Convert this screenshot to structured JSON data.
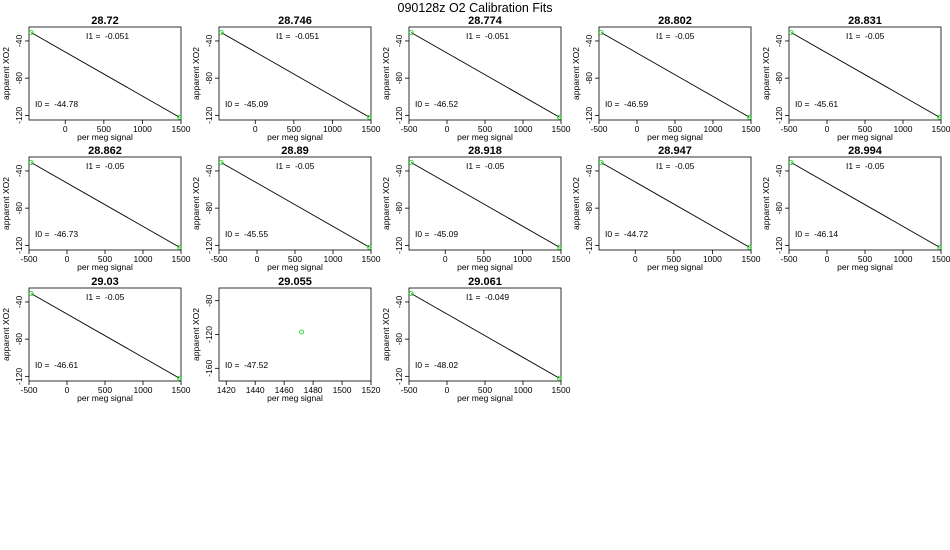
{
  "figure": {
    "title": "090128z   O2 Calibration Fits"
  },
  "colors": {
    "point": "#22dd22",
    "line": "#000000"
  },
  "chart_data": [
    {
      "type": "scatter",
      "title": "28.72",
      "xlabel": "per meg signal",
      "ylabel": "apparent XO2",
      "xticks": [
        0,
        500,
        1000,
        1500
      ],
      "xlim": [
        -470,
        1500
      ],
      "yticks": [
        -40,
        -80,
        -120
      ],
      "ylim": [
        -125,
        -25
      ],
      "points": [
        {
          "x": -440,
          "y": -31
        },
        {
          "x": 1480,
          "y": -122
        }
      ],
      "fit_line": true,
      "I1_label": "I1 =",
      "I1_value": "-0.051",
      "I0_label": "I0 =",
      "I0_value": "-44.78"
    },
    {
      "type": "scatter",
      "title": "28.746",
      "xlabel": "per meg signal",
      "ylabel": "apparent XO2",
      "xticks": [
        0,
        500,
        1000,
        1500
      ],
      "xlim": [
        -470,
        1500
      ],
      "yticks": [
        -40,
        -80,
        -120
      ],
      "ylim": [
        -125,
        -25
      ],
      "points": [
        {
          "x": -440,
          "y": -31
        },
        {
          "x": 1480,
          "y": -122
        }
      ],
      "fit_line": true,
      "I1_label": "I1 =",
      "I1_value": "-0.051",
      "I0_label": "I0 =",
      "I0_value": "-45.09"
    },
    {
      "type": "scatter",
      "title": "28.774",
      "xlabel": "per meg signal",
      "ylabel": "apparent XO2",
      "xticks": [
        -500,
        0,
        500,
        1000,
        1500
      ],
      "xlim": [
        -500,
        1500
      ],
      "yticks": [
        -40,
        -80,
        -120
      ],
      "ylim": [
        -125,
        -25
      ],
      "points": [
        {
          "x": -470,
          "y": -31
        },
        {
          "x": 1480,
          "y": -122
        }
      ],
      "fit_line": true,
      "I1_label": "I1 =",
      "I1_value": "-0.051",
      "I0_label": "I0 =",
      "I0_value": "-46.52"
    },
    {
      "type": "scatter",
      "title": "28.802",
      "xlabel": "per meg signal",
      "ylabel": "apparent XO2",
      "xticks": [
        -500,
        0,
        500,
        1000,
        1500
      ],
      "xlim": [
        -500,
        1500
      ],
      "yticks": [
        -40,
        -80,
        -120
      ],
      "ylim": [
        -125,
        -25
      ],
      "points": [
        {
          "x": -470,
          "y": -31
        },
        {
          "x": 1480,
          "y": -122
        }
      ],
      "fit_line": true,
      "I1_label": "I1 =",
      "I1_value": "-0.05",
      "I0_label": "I0 =",
      "I0_value": "-46.59"
    },
    {
      "type": "scatter",
      "title": "28.831",
      "xlabel": "per meg signal",
      "ylabel": "apparent XO2",
      "xticks": [
        -500,
        0,
        500,
        1000,
        1500
      ],
      "xlim": [
        -500,
        1500
      ],
      "yticks": [
        -40,
        -80,
        -120
      ],
      "ylim": [
        -125,
        -25
      ],
      "points": [
        {
          "x": -470,
          "y": -31
        },
        {
          "x": 1480,
          "y": -122
        }
      ],
      "fit_line": true,
      "I1_label": "I1 =",
      "I1_value": "-0.05",
      "I0_label": "I0 =",
      "I0_value": "-45.61"
    },
    {
      "type": "scatter",
      "title": "28.862",
      "xlabel": "per meg signal",
      "ylabel": "apparent XO2",
      "xticks": [
        -500,
        0,
        500,
        1000,
        1500
      ],
      "xlim": [
        -500,
        1500
      ],
      "yticks": [
        -40,
        -80,
        -120
      ],
      "ylim": [
        -125,
        -25
      ],
      "points": [
        {
          "x": -470,
          "y": -31
        },
        {
          "x": 1480,
          "y": -122
        }
      ],
      "fit_line": true,
      "I1_label": "I1 =",
      "I1_value": "-0.05",
      "I0_label": "I0 =",
      "I0_value": "-46.73"
    },
    {
      "type": "scatter",
      "title": "28.89",
      "xlabel": "per meg signal",
      "ylabel": "apparent XO2",
      "xticks": [
        -500,
        0,
        500,
        1000,
        1500
      ],
      "xlim": [
        -500,
        1500
      ],
      "yticks": [
        -40,
        -80,
        -120
      ],
      "ylim": [
        -125,
        -25
      ],
      "points": [
        {
          "x": -470,
          "y": -31
        },
        {
          "x": 1480,
          "y": -122
        }
      ],
      "fit_line": true,
      "I1_label": "I1 =",
      "I1_value": "-0.05",
      "I0_label": "I0 =",
      "I0_value": "-45.55"
    },
    {
      "type": "scatter",
      "title": "28.918",
      "xlabel": "per meg signal",
      "ylabel": "apparent XO2",
      "xticks": [
        0,
        500,
        1000,
        1500
      ],
      "xlim": [
        -470,
        1500
      ],
      "yticks": [
        -40,
        -80,
        -120
      ],
      "ylim": [
        -125,
        -25
      ],
      "points": [
        {
          "x": -440,
          "y": -31
        },
        {
          "x": 1480,
          "y": -122
        }
      ],
      "fit_line": true,
      "I1_label": "I1 =",
      "I1_value": "-0.05",
      "I0_label": "I0 =",
      "I0_value": "-45.09"
    },
    {
      "type": "scatter",
      "title": "28.947",
      "xlabel": "per meg signal",
      "ylabel": "apparent XO2",
      "xticks": [
        0,
        500,
        1000,
        1500
      ],
      "xlim": [
        -470,
        1500
      ],
      "yticks": [
        -40,
        -80,
        -120
      ],
      "ylim": [
        -125,
        -25
      ],
      "points": [
        {
          "x": -440,
          "y": -31
        },
        {
          "x": 1480,
          "y": -122
        }
      ],
      "fit_line": true,
      "I1_label": "I1 =",
      "I1_value": "-0.05",
      "I0_label": "I0 =",
      "I0_value": "-44.72"
    },
    {
      "type": "scatter",
      "title": "28.994",
      "xlabel": "per meg signal",
      "ylabel": "apparent XO2",
      "xticks": [
        -500,
        0,
        500,
        1000,
        1500
      ],
      "xlim": [
        -500,
        1500
      ],
      "yticks": [
        -40,
        -80,
        -120
      ],
      "ylim": [
        -125,
        -25
      ],
      "points": [
        {
          "x": -470,
          "y": -31
        },
        {
          "x": 1480,
          "y": -122
        }
      ],
      "fit_line": true,
      "I1_label": "I1 =",
      "I1_value": "-0.05",
      "I0_label": "I0 =",
      "I0_value": "-46.14"
    },
    {
      "type": "scatter",
      "title": "29.03",
      "xlabel": "per meg signal",
      "ylabel": "apparent XO2",
      "xticks": [
        -500,
        0,
        500,
        1000,
        1500
      ],
      "xlim": [
        -500,
        1500
      ],
      "yticks": [
        -40,
        -80,
        -120
      ],
      "ylim": [
        -125,
        -25
      ],
      "points": [
        {
          "x": -470,
          "y": -31
        },
        {
          "x": 1480,
          "y": -122
        }
      ],
      "fit_line": true,
      "I1_label": "I1 =",
      "I1_value": "-0.05",
      "I0_label": "I0 =",
      "I0_value": "-46.61"
    },
    {
      "type": "scatter",
      "title": "29.055",
      "xlabel": "per meg signal",
      "ylabel": "apparent XO2",
      "xticks": [
        1420,
        1440,
        1460,
        1480,
        1500,
        1520
      ],
      "xlim": [
        1415,
        1520
      ],
      "yticks": [
        -80,
        -120,
        -160
      ],
      "ylim": [
        -175,
        -65
      ],
      "points": [
        {
          "x": 1472,
          "y": -117
        }
      ],
      "fit_line": false,
      "I1_label": "",
      "I1_value": "",
      "I0_label": "I0 =",
      "I0_value": "-47.52"
    },
    {
      "type": "scatter",
      "title": "29.061",
      "xlabel": "per meg signal",
      "ylabel": "apparent XO2",
      "xticks": [
        -500,
        0,
        500,
        1000,
        1500
      ],
      "xlim": [
        -500,
        1500
      ],
      "yticks": [
        -40,
        -80,
        -120
      ],
      "ylim": [
        -125,
        -25
      ],
      "points": [
        {
          "x": -470,
          "y": -31
        },
        {
          "x": 1480,
          "y": -122
        }
      ],
      "fit_line": true,
      "I1_label": "I1 =",
      "I1_value": "-0.049",
      "I0_label": "I0 =",
      "I0_value": "-48.02"
    }
  ]
}
